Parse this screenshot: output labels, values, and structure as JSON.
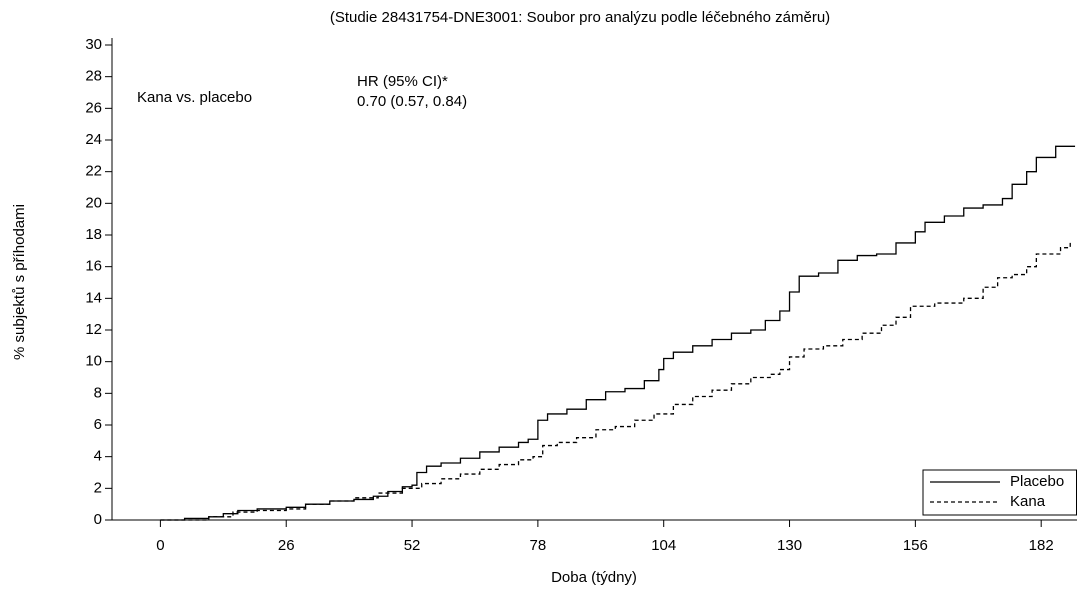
{
  "chart_data": {
    "type": "line",
    "step": true,
    "title": "(Studie 28431754-DNE3001: Soubor pro analýzu podle léčebného záměru)",
    "x_label": "Doba (týdny)",
    "y_label": "% subjektů s příhodami",
    "annotations": [
      "Kana vs. placebo",
      "HR (95% CI)*",
      "0.70 (0.57, 0.84)"
    ],
    "xlim": [
      -10,
      189.4
    ],
    "xticks": [
      0,
      26,
      52,
      78,
      104,
      130,
      156,
      182
    ],
    "ylim": [
      0,
      30
    ],
    "yticks": [
      0,
      2,
      4,
      6,
      8,
      10,
      12,
      14,
      16,
      18,
      20,
      22,
      24,
      26,
      28,
      30
    ],
    "legend": "lower right",
    "series": [
      {
        "name": "Placebo",
        "color": "#000000",
        "dash": "solid",
        "x": [
          0,
          5,
          10,
          13,
          16,
          20,
          26,
          30,
          35,
          40,
          44,
          47,
          50,
          52,
          53,
          55,
          58,
          62,
          66,
          70,
          74,
          76,
          78,
          80,
          84,
          88,
          92,
          96,
          100,
          103,
          104,
          106,
          110,
          114,
          118,
          122,
          125,
          128,
          130,
          132,
          136,
          140,
          144,
          148,
          152,
          156,
          158,
          162,
          166,
          170,
          174,
          176,
          179,
          181,
          185,
          189
        ],
        "values": [
          0,
          0.1,
          0.2,
          0.4,
          0.6,
          0.7,
          0.8,
          1.0,
          1.2,
          1.3,
          1.5,
          1.8,
          2.1,
          2.2,
          3.0,
          3.4,
          3.6,
          3.9,
          4.3,
          4.6,
          4.9,
          5.1,
          6.3,
          6.7,
          7.0,
          7.6,
          8.1,
          8.3,
          8.8,
          9.5,
          10.2,
          10.6,
          11.0,
          11.4,
          11.8,
          12.0,
          12.6,
          13.2,
          14.4,
          15.4,
          15.6,
          16.4,
          16.7,
          16.8,
          17.5,
          18.2,
          18.8,
          19.2,
          19.7,
          19.9,
          20.3,
          21.2,
          22.0,
          22.9,
          23.6,
          23.6
        ]
      },
      {
        "name": "Kana",
        "color": "#000000",
        "dash": "dashed",
        "x": [
          0,
          10,
          15,
          20,
          26,
          30,
          35,
          40,
          45,
          50,
          54,
          58,
          62,
          66,
          70,
          74,
          77,
          79,
          82,
          86,
          90,
          94,
          98,
          102,
          106,
          110,
          114,
          118,
          122,
          126,
          128,
          130,
          133,
          137,
          141,
          145,
          149,
          152,
          155,
          160,
          166,
          170,
          173,
          176,
          179,
          181,
          186,
          188
        ],
        "values": [
          0,
          0.2,
          0.5,
          0.6,
          0.7,
          1.0,
          1.2,
          1.4,
          1.7,
          2.0,
          2.3,
          2.6,
          2.9,
          3.2,
          3.5,
          3.8,
          4.0,
          4.7,
          4.9,
          5.2,
          5.7,
          5.9,
          6.3,
          6.7,
          7.3,
          7.8,
          8.2,
          8.6,
          9.0,
          9.2,
          9.5,
          10.3,
          10.8,
          11.0,
          11.4,
          11.8,
          12.3,
          12.8,
          13.5,
          13.7,
          14.0,
          14.7,
          15.3,
          15.5,
          16.0,
          16.8,
          17.2,
          17.6
        ]
      }
    ]
  }
}
